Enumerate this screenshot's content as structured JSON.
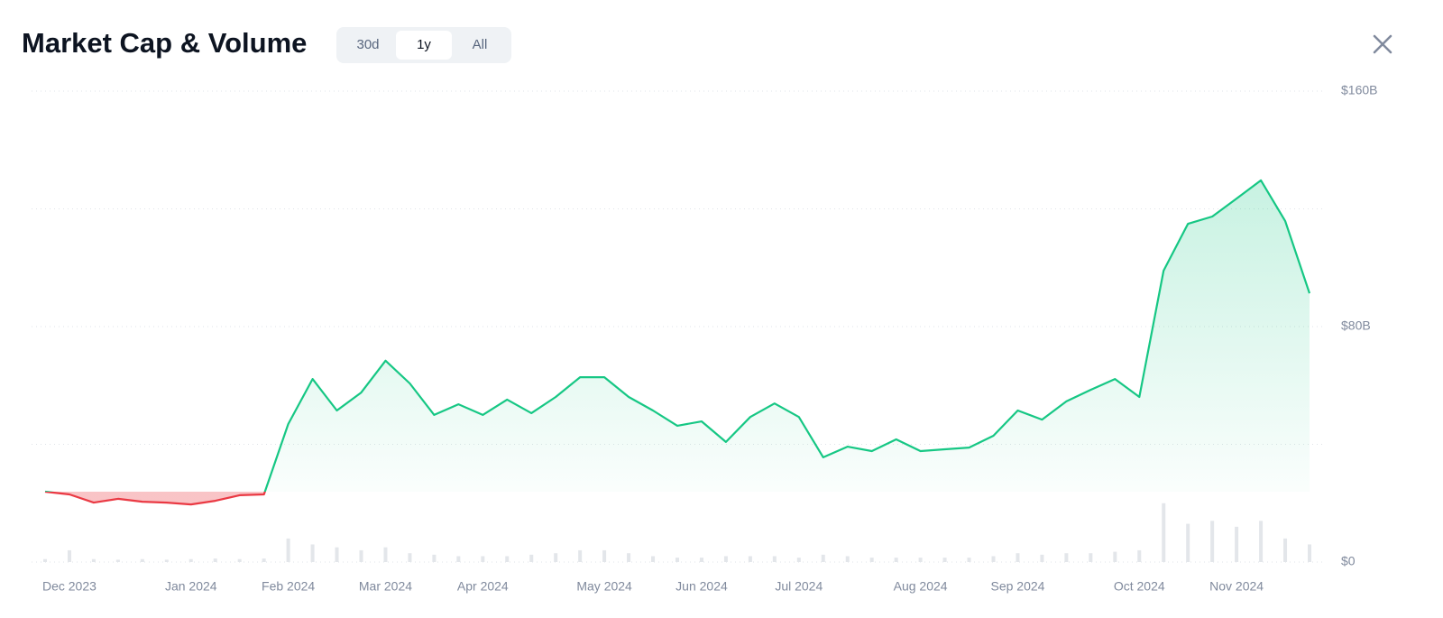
{
  "chart_data": {
    "type": "line",
    "title": "Market Cap & Volume",
    "categories": [
      null,
      "Dec 2023",
      null,
      null,
      null,
      null,
      "Jan 2024",
      null,
      null,
      null,
      "Feb 2024",
      null,
      null,
      null,
      "Mar 2024",
      null,
      null,
      null,
      "Apr 2024",
      null,
      null,
      null,
      null,
      "May 2024",
      null,
      null,
      null,
      "Jun 2024",
      null,
      null,
      null,
      "Jul 2024",
      null,
      null,
      null,
      null,
      "Aug 2024",
      null,
      null,
      null,
      "Sep 2024",
      null,
      null,
      null,
      null,
      "Oct 2024",
      null,
      null,
      null,
      "Nov 2024",
      null,
      null,
      null
    ],
    "series": [
      {
        "up_color": "#16c784",
        "down_color": "#ea3943",
        "values": [
          23.9,
          23,
          20.2,
          21.5,
          20.5,
          20.2,
          19.6,
          20.8,
          22.7,
          23,
          46.9,
          62.2,
          51.5,
          57.6,
          68.4,
          60.7,
          50,
          53.6,
          50,
          55.2,
          50.6,
          56.1,
          62.8,
          62.8,
          56.1,
          51.5,
          46.3,
          47.8,
          40.8,
          49.3,
          53.9,
          49.3,
          35.6,
          39.2,
          37.7,
          41.7,
          37.7,
          38.3,
          38.9,
          42.9,
          51.5,
          48.4,
          54.6,
          58.5,
          62.2,
          56.1,
          99,
          114.9,
          117.4,
          123.5,
          129.7,
          115.9,
          91.3
        ]
      },
      {
        "type": "bar",
        "color": "#e3e6ea",
        "values": [
          1,
          4,
          1,
          0.8,
          1,
          0.8,
          1,
          1.2,
          1,
          1.2,
          8,
          6,
          5,
          4,
          5,
          3,
          2.5,
          2,
          2,
          2,
          2.5,
          3,
          4,
          4,
          3,
          2,
          1.5,
          1.5,
          2,
          2,
          2,
          1.5,
          2.5,
          2,
          1.5,
          1.5,
          1.5,
          1.5,
          1.5,
          2,
          3,
          2.5,
          3,
          3,
          3.5,
          4,
          20,
          13,
          14,
          12,
          14,
          8,
          6
        ]
      }
    ],
    "ylim": [
      0,
      160
    ],
    "yticks": [
      {
        "value": 0,
        "label": "$0"
      },
      {
        "value": 80,
        "label": "$80B"
      },
      {
        "value": 160,
        "label": "$160B"
      }
    ],
    "ygrid": [
      0,
      40,
      80,
      120,
      160
    ],
    "grid": true
  },
  "controls": {
    "ranges": [
      "30d",
      "1y",
      "All"
    ],
    "selected": 1
  }
}
